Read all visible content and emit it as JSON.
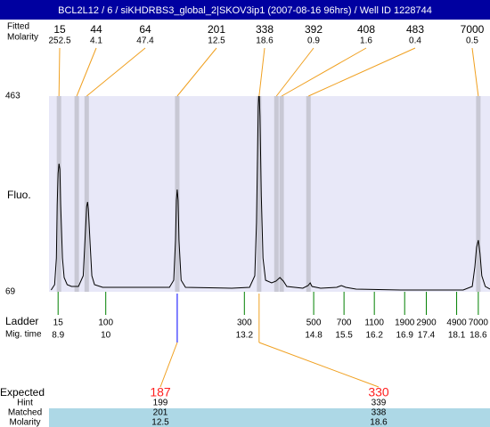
{
  "header": {
    "title": "BCL2L12 / 6 / siKHDRBS3_global_2|SKOV3ip1 (2007-08-16 96hrs) / Well ID 1228744"
  },
  "peak_table": {
    "labels": [
      "Fitted",
      "Molarity"
    ],
    "sizes": [
      15,
      44,
      64,
      201,
      338,
      392,
      408,
      483,
      7000
    ],
    "molarity": [
      252.5,
      4.1,
      47.4,
      12.5,
      18.6,
      0.9,
      1.6,
      0.4,
      0.5
    ],
    "migration_times": [
      8.92,
      9.33,
      9.56,
      11.65,
      13.54,
      13.94,
      14.06,
      14.68,
      18.6
    ]
  },
  "chart_data": {
    "type": "line",
    "y_label": "Fluo.",
    "color": "#000000",
    "plot_color": "#e8e8f8",
    "xlim": [
      8.69,
      18.87
    ],
    "ylim": [
      69,
      463
    ],
    "yticks": [
      463,
      69
    ],
    "x": [
      8.74,
      8.82,
      8.86,
      8.88,
      8.9,
      8.92,
      8.94,
      8.96,
      9.0,
      9.04,
      9.11,
      9.21,
      9.37,
      9.48,
      9.52,
      9.56,
      9.58,
      9.6,
      9.64,
      9.68,
      9.74,
      9.93,
      10.65,
      11.47,
      11.57,
      11.61,
      11.63,
      11.65,
      11.67,
      11.69,
      11.74,
      11.84,
      12.91,
      13.32,
      13.44,
      13.48,
      13.52,
      13.54,
      13.56,
      13.59,
      13.63,
      13.69,
      13.83,
      13.93,
      14.02,
      14.06,
      14.1,
      14.18,
      14.55,
      14.67,
      14.72,
      14.76,
      14.96,
      15.33,
      15.44,
      15.54,
      15.78,
      16.81,
      18.25,
      18.46,
      18.52,
      18.56,
      18.6,
      18.64,
      18.68,
      18.76,
      18.87
    ],
    "values": [
      72.6,
      83.3,
      137.1,
      244.5,
      307.2,
      326.9,
      316.1,
      244.5,
      137.1,
      97.7,
      83.3,
      79.7,
      79.7,
      101.2,
      172.9,
      240.9,
      249.9,
      235.6,
      163.9,
      101.2,
      83.3,
      78.0,
      78.0,
      78.0,
      92.3,
      172.9,
      253.5,
      275.0,
      253.5,
      172.9,
      92.3,
      78.0,
      76.2,
      78.0,
      101.2,
      208.7,
      441.5,
      477.3,
      423.6,
      262.4,
      137.1,
      92.3,
      86.9,
      90.5,
      97.7,
      94.1,
      90.5,
      79.7,
      76.2,
      81.5,
      86.9,
      79.7,
      76.2,
      78.0,
      81.5,
      78.0,
      74.4,
      72.6,
      72.6,
      79.7,
      119.1,
      158.5,
      172.9,
      146.0,
      101.2,
      79.7,
      74.4
    ],
    "ladder_label": "Ladder",
    "mig_label": "Mig. time",
    "ladder_sizes": [
      15,
      100,
      300,
      500,
      700,
      1100,
      1900,
      2900,
      4900,
      7000
    ],
    "ladder_times": [
      8.9,
      10,
      13.2,
      14.8,
      15.5,
      16.2,
      16.9,
      17.4,
      18.1,
      18.6
    ]
  },
  "expected": {
    "labels": [
      "Expected",
      "Hint",
      "Matched",
      "Molarity"
    ],
    "expected": [
      187,
      330
    ],
    "hint": [
      199,
      339
    ],
    "matched": [
      201,
      338
    ],
    "molarity": [
      12.5,
      18.6
    ]
  }
}
